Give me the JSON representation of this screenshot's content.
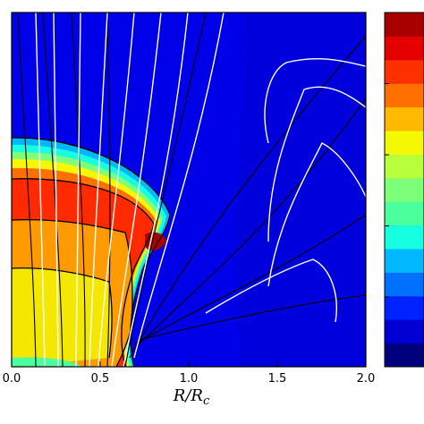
{
  "chart_data": {
    "type": "heatmap",
    "xlabel": "R/R_c",
    "xlabel_main": "R/R",
    "xlabel_sub": "c",
    "xlim": [
      0.0,
      2.0
    ],
    "x_ticks": [
      0.0,
      0.5,
      1.0,
      1.5,
      2.0
    ],
    "x_tick_labels": [
      "0.0",
      "0.5",
      "1.0",
      "1.5",
      "2.0"
    ],
    "ylim": [
      0.0,
      2.0
    ],
    "colorbar": {
      "colors": [
        "#00007f",
        "#0000d4",
        "#0022ff",
        "#0070ff",
        "#00b8ff",
        "#16ffe1",
        "#4aff9c",
        "#7dff7a",
        "#baff3c",
        "#f4f802",
        "#ffb900",
        "#ff7000",
        "#ff3000",
        "#e40000",
        "#a80000"
      ],
      "tick_count": 4
    },
    "colors": {
      "background_field": "#0000e0",
      "outer_region": "#0022dc",
      "dense_core": "#ff2a00"
    }
  }
}
